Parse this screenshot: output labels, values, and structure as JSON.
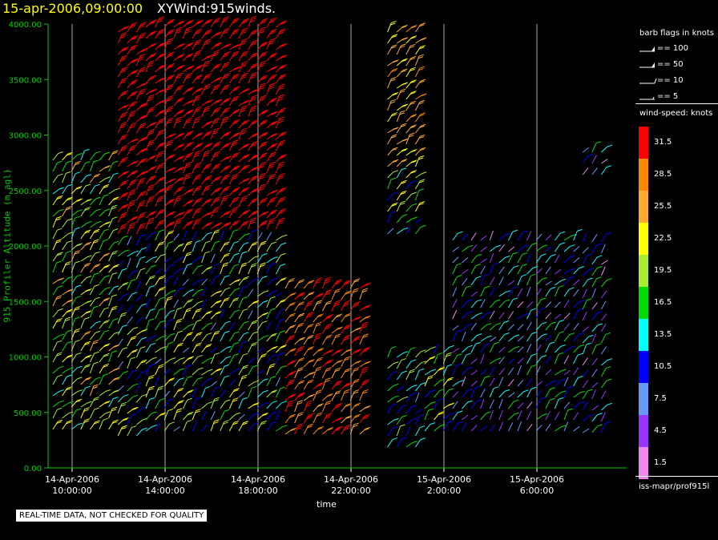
{
  "header": {
    "date": "15-apr-2006,09:00:00",
    "name": "XYWind:915winds."
  },
  "chart_data": {
    "type": "scatter",
    "subtype": "wind-barb time-height",
    "xlabel": "time",
    "ylabel": "915 Profiler Altitude (m agl)",
    "ylim": [
      0,
      4000
    ],
    "yticks": [
      "0.00",
      "500.00",
      "1000.00",
      "1500.00",
      "2000.00",
      "2500.00",
      "3000.00",
      "3500.00",
      "4000.00"
    ],
    "xticks": [
      {
        "date": "14-Apr-2006",
        "time": "10:00:00"
      },
      {
        "date": "14-Apr-2006",
        "time": "14:00:00"
      },
      {
        "date": "14-Apr-2006",
        "time": "18:00:00"
      },
      {
        "date": "14-Apr-2006",
        "time": "22:00:00"
      },
      {
        "date": "15-Apr-2006",
        "time": "2:00:00"
      },
      {
        "date": "15-Apr-2006",
        "time": "6:00:00"
      }
    ],
    "grid": "vertical at x ticks",
    "colors": {
      "axis": "#00cc00",
      "grid": "#aaaaaa"
    }
  },
  "legend": {
    "barb_title": "barb flags in knots",
    "flags": [
      {
        "label": "== 100",
        "kind": "pennant2"
      },
      {
        "label": "== 50",
        "kind": "pennant"
      },
      {
        "label": "== 10",
        "kind": "full"
      },
      {
        "label": "== 5",
        "kind": "half"
      }
    ],
    "speed_title": "wind-speed: knots",
    "speed_scale": [
      {
        "label": "31.5",
        "color": "#ff0000"
      },
      {
        "label": "28.5",
        "color": "#ff8800"
      },
      {
        "label": "25.5",
        "color": "#ffaa33"
      },
      {
        "label": "22.5",
        "color": "#ffff00"
      },
      {
        "label": "19.5",
        "color": "#aaee33"
      },
      {
        "label": "16.5",
        "color": "#00dd00"
      },
      {
        "label": "13.5",
        "color": "#00ffff"
      },
      {
        "label": "10.5",
        "color": "#0000ff"
      },
      {
        "label": "7.5",
        "color": "#6699ff"
      },
      {
        "label": "4.5",
        "color": "#9933ff"
      },
      {
        "label": "1.5",
        "color": "#ee88ee"
      }
    ],
    "footer": "iss-mapr/prof915l"
  },
  "disclaimer": "REAL-TIME DATA, NOT CHECKED FOR QUALITY"
}
